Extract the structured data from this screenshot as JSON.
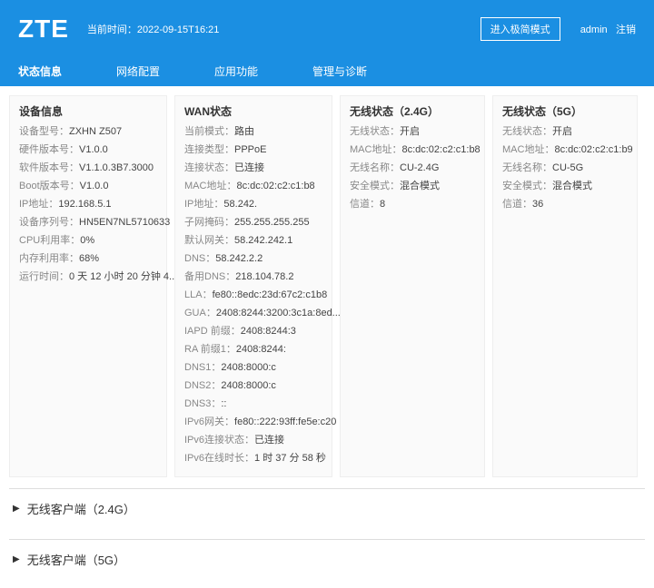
{
  "header": {
    "logo": "ZTE",
    "time_label": "当前时间",
    "time_value": "2022-09-15T16:21",
    "mode_button": "进入极简模式",
    "user": "admin",
    "logout": "注销"
  },
  "nav": {
    "items": [
      {
        "label": "状态信息"
      },
      {
        "label": "网络配置"
      },
      {
        "label": "应用功能"
      },
      {
        "label": "管理与诊断"
      }
    ]
  },
  "device": {
    "title": "设备信息",
    "model_lbl": "设备型号",
    "model": "ZXHN Z507",
    "hwver_lbl": "硬件版本号",
    "hwver": "V1.0.0",
    "swver_lbl": "软件版本号",
    "swver": "V1.1.0.3B7.3000",
    "bootver_lbl": "Boot版本号",
    "bootver": "V1.0.0",
    "ip_lbl": "IP地址",
    "ip": "192.168.5.1",
    "sn_lbl": "设备序列号",
    "sn": "HN5EN7NL5710633",
    "cpu_lbl": "CPU利用率",
    "cpu": "0%",
    "mem_lbl": "内存利用率",
    "mem": "68%",
    "uptime_lbl": "运行时间",
    "uptime": "0 天 12 小时 20 分钟 4..."
  },
  "wan": {
    "title": "WAN状态",
    "mode_lbl": "当前模式",
    "mode": "路由",
    "ctype_lbl": "连接类型",
    "ctype": "PPPoE",
    "cstat_lbl": "连接状态",
    "cstat": "已连接",
    "mac_lbl": "MAC地址",
    "mac": "8c:dc:02:c2:c1:b8",
    "ip_lbl": "IP地址",
    "ip": "58.242.",
    "mask_lbl": "子网掩码",
    "mask": "255.255.255.255",
    "gw_lbl": "默认网关",
    "gw": "58.242.242.1",
    "dns_lbl": "DNS",
    "dns": "58.242.2.2",
    "dns2_lbl": "备用DNS",
    "dns2": "218.104.78.2",
    "lla_lbl": "LLA",
    "lla": "fe80::8edc:23d:67c2:c1b8",
    "gua_lbl": "GUA",
    "gua": "2408:8244:3200:3c1a:8ed...",
    "iapd_lbl": "IAPD 前缀",
    "iapd": "2408:8244:3",
    "ra_lbl": "RA 前缀1",
    "ra": "2408:8244:",
    "dns1v6_lbl": "DNS1",
    "dns1v6": "2408:8000:c",
    "dns2v6_lbl": "DNS2",
    "dns2v6": "2408:8000:c",
    "dns3v6_lbl": "DNS3",
    "dns3v6": "::",
    "gw6_lbl": "IPv6网关",
    "gw6": "fe80::222:93ff:fe5e:c20",
    "stat6_lbl": "IPv6连接状态",
    "stat6": "已连接",
    "up6_lbl": "IPv6在线时长",
    "up6": "1 时 37 分 58 秒"
  },
  "wl24": {
    "title": "无线状态（2.4G）",
    "stat_lbl": "无线状态",
    "stat": "开启",
    "mac_lbl": "MAC地址",
    "mac": "8c:dc:02:c2:c1:b8",
    "name_lbl": "无线名称",
    "name": "CU-2.4G",
    "sec_lbl": "安全模式",
    "sec": "混合模式",
    "ch_lbl": "信道",
    "ch": "8"
  },
  "wl5": {
    "title": "无线状态（5G）",
    "stat_lbl": "无线状态",
    "stat": "开启",
    "mac_lbl": "MAC地址",
    "mac": "8c:dc:02:c2:c1:b9",
    "name_lbl": "无线名称",
    "name": "CU-5G",
    "sec_lbl": "安全模式",
    "sec": "混合模式",
    "ch_lbl": "信道",
    "ch": "36"
  },
  "accordion": {
    "a1": "无线客户端（2.4G）",
    "a2": "无线客户端（5G）"
  }
}
